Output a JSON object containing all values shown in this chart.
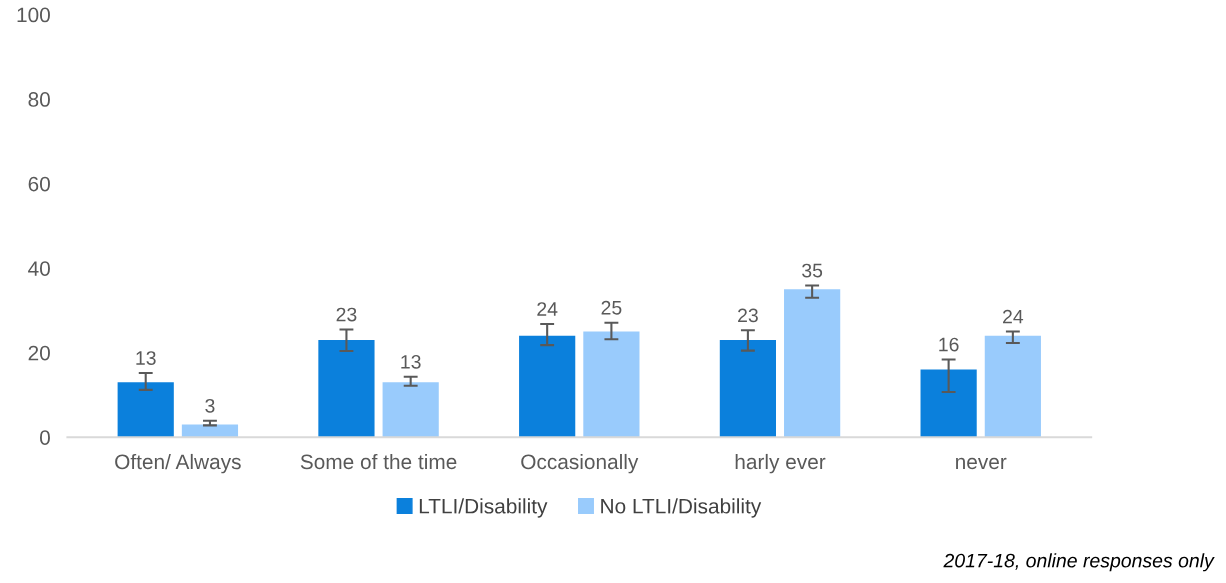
{
  "chart_data": {
    "type": "bar",
    "categories": [
      "Often/ Always",
      "Some of the time",
      "Occasionally",
      "harly ever",
      "never"
    ],
    "series": [
      {
        "name": "LTLI/Disability",
        "color": "#0b80dc",
        "values": [
          13,
          23,
          24,
          23,
          16
        ],
        "errors": [
          [
            11.2,
            15.2
          ],
          [
            20.4,
            25.5
          ],
          [
            21.8,
            26.8
          ],
          [
            20.5,
            25.3
          ],
          [
            10.7,
            18.4
          ]
        ]
      },
      {
        "name": "No LTLI/Disability",
        "color": "#99cbfc",
        "values": [
          3,
          13,
          25,
          35,
          24
        ],
        "errors": [
          [
            2.8,
            3.9
          ],
          [
            12.2,
            14.3
          ],
          [
            23.2,
            27.1
          ],
          [
            33.0,
            35.9
          ],
          [
            22.3,
            25.0
          ]
        ]
      }
    ],
    "ylim": [
      0,
      100
    ],
    "yticks": [
      0,
      20,
      40,
      60,
      80,
      100
    ],
    "grid": false,
    "legend": "bottom",
    "data_labels": true,
    "annotations": [
      "2017-18, online responses only"
    ]
  }
}
